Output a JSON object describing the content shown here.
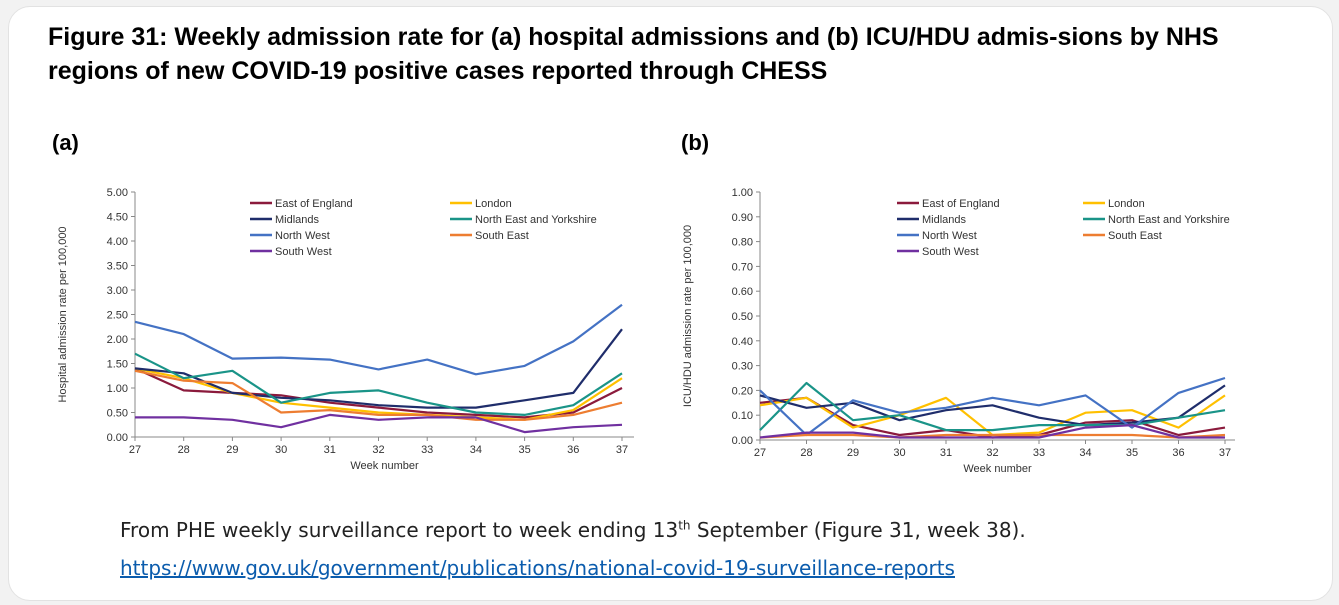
{
  "figure_title": "Figure 31: Weekly admission rate for (a) hospital admissions and (b) ICU/HDU admis-sions by NHS regions of new COVID-19 positive cases reported through CHESS",
  "caption": {
    "text_before": "From PHE weekly surveillance report to week ending 13",
    "superscript": "th",
    "text_after": " September (Figure 31, week 38).",
    "link": "https://www.gov.uk/government/publications/national-covid-19-surveillance-reports"
  },
  "chart_data": [
    {
      "panel_label": "(a)",
      "type": "line",
      "x": [
        27,
        28,
        29,
        30,
        31,
        32,
        33,
        34,
        35,
        36,
        37
      ],
      "xlabel": "Week number",
      "ylabel": "Hospital admission rate per 100,000",
      "ylim": [
        0,
        5
      ],
      "yticks": [
        "0.00",
        "0.50",
        "1.00",
        "1.50",
        "2.00",
        "2.50",
        "3.00",
        "3.50",
        "4.00",
        "4.50",
        "5.00"
      ],
      "grid": false,
      "legend_position": "top-right",
      "series": [
        {
          "name": "East of England",
          "color": "#8b1a3c",
          "values": [
            1.4,
            0.95,
            0.9,
            0.85,
            0.7,
            0.6,
            0.5,
            0.45,
            0.4,
            0.5,
            1.0
          ]
        },
        {
          "name": "London",
          "color": "#ffc000",
          "values": [
            1.4,
            1.2,
            0.9,
            0.7,
            0.6,
            0.5,
            0.45,
            0.4,
            0.35,
            0.55,
            1.2
          ]
        },
        {
          "name": "Midlands",
          "color": "#1f2d6b",
          "values": [
            1.4,
            1.3,
            0.9,
            0.8,
            0.75,
            0.65,
            0.6,
            0.6,
            0.75,
            0.9,
            2.2
          ]
        },
        {
          "name": "North East and Yorkshire",
          "color": "#1a9488",
          "values": [
            1.7,
            1.2,
            1.35,
            0.7,
            0.9,
            0.95,
            0.7,
            0.5,
            0.45,
            0.65,
            1.3
          ]
        },
        {
          "name": "North West",
          "color": "#4472c4",
          "values": [
            2.35,
            2.1,
            1.6,
            1.62,
            1.58,
            1.38,
            1.58,
            1.28,
            1.45,
            1.95,
            2.7
          ]
        },
        {
          "name": "South East",
          "color": "#ed7d31",
          "values": [
            1.35,
            1.15,
            1.1,
            0.5,
            0.55,
            0.45,
            0.45,
            0.35,
            0.35,
            0.45,
            0.7
          ]
        },
        {
          "name": "South West",
          "color": "#7030a0",
          "values": [
            0.4,
            0.4,
            0.35,
            0.2,
            0.45,
            0.35,
            0.4,
            0.4,
            0.1,
            0.2,
            0.25
          ]
        }
      ]
    },
    {
      "panel_label": "(b)",
      "type": "line",
      "x": [
        27,
        28,
        29,
        30,
        31,
        32,
        33,
        34,
        35,
        36,
        37
      ],
      "xlabel": "Week number",
      "ylabel": "ICU/HDU admission rate per 100,000",
      "ylim": [
        0,
        1
      ],
      "yticks": [
        "0.00",
        "0.10",
        "0.20",
        "0.30",
        "0.40",
        "0.50",
        "0.60",
        "0.70",
        "0.80",
        "0.90",
        "1.00"
      ],
      "grid": false,
      "legend_position": "top-right",
      "series": [
        {
          "name": "East of England",
          "color": "#8b1a3c",
          "values": [
            0.15,
            0.17,
            0.06,
            0.02,
            0.04,
            0.01,
            0.02,
            0.07,
            0.08,
            0.02,
            0.05
          ]
        },
        {
          "name": "London",
          "color": "#ffc000",
          "values": [
            0.14,
            0.17,
            0.05,
            0.1,
            0.17,
            0.02,
            0.03,
            0.11,
            0.12,
            0.05,
            0.18
          ]
        },
        {
          "name": "Midlands",
          "color": "#1f2d6b",
          "values": [
            0.18,
            0.13,
            0.15,
            0.08,
            0.12,
            0.14,
            0.09,
            0.06,
            0.07,
            0.09,
            0.22
          ]
        },
        {
          "name": "North East and Yorkshire",
          "color": "#1a9488",
          "values": [
            0.04,
            0.23,
            0.08,
            0.1,
            0.04,
            0.04,
            0.06,
            0.06,
            0.06,
            0.09,
            0.12
          ]
        },
        {
          "name": "North West",
          "color": "#4472c4",
          "values": [
            0.2,
            0.02,
            0.16,
            0.11,
            0.13,
            0.17,
            0.14,
            0.18,
            0.05,
            0.19,
            0.25
          ]
        },
        {
          "name": "South East",
          "color": "#ed7d31",
          "values": [
            0.01,
            0.02,
            0.02,
            0.01,
            0.02,
            0.02,
            0.02,
            0.02,
            0.02,
            0.01,
            0.02
          ]
        },
        {
          "name": "South West",
          "color": "#7030a0",
          "values": [
            0.01,
            0.03,
            0.03,
            0.01,
            0.01,
            0.01,
            0.01,
            0.05,
            0.06,
            0.01,
            0.01
          ]
        }
      ]
    }
  ]
}
